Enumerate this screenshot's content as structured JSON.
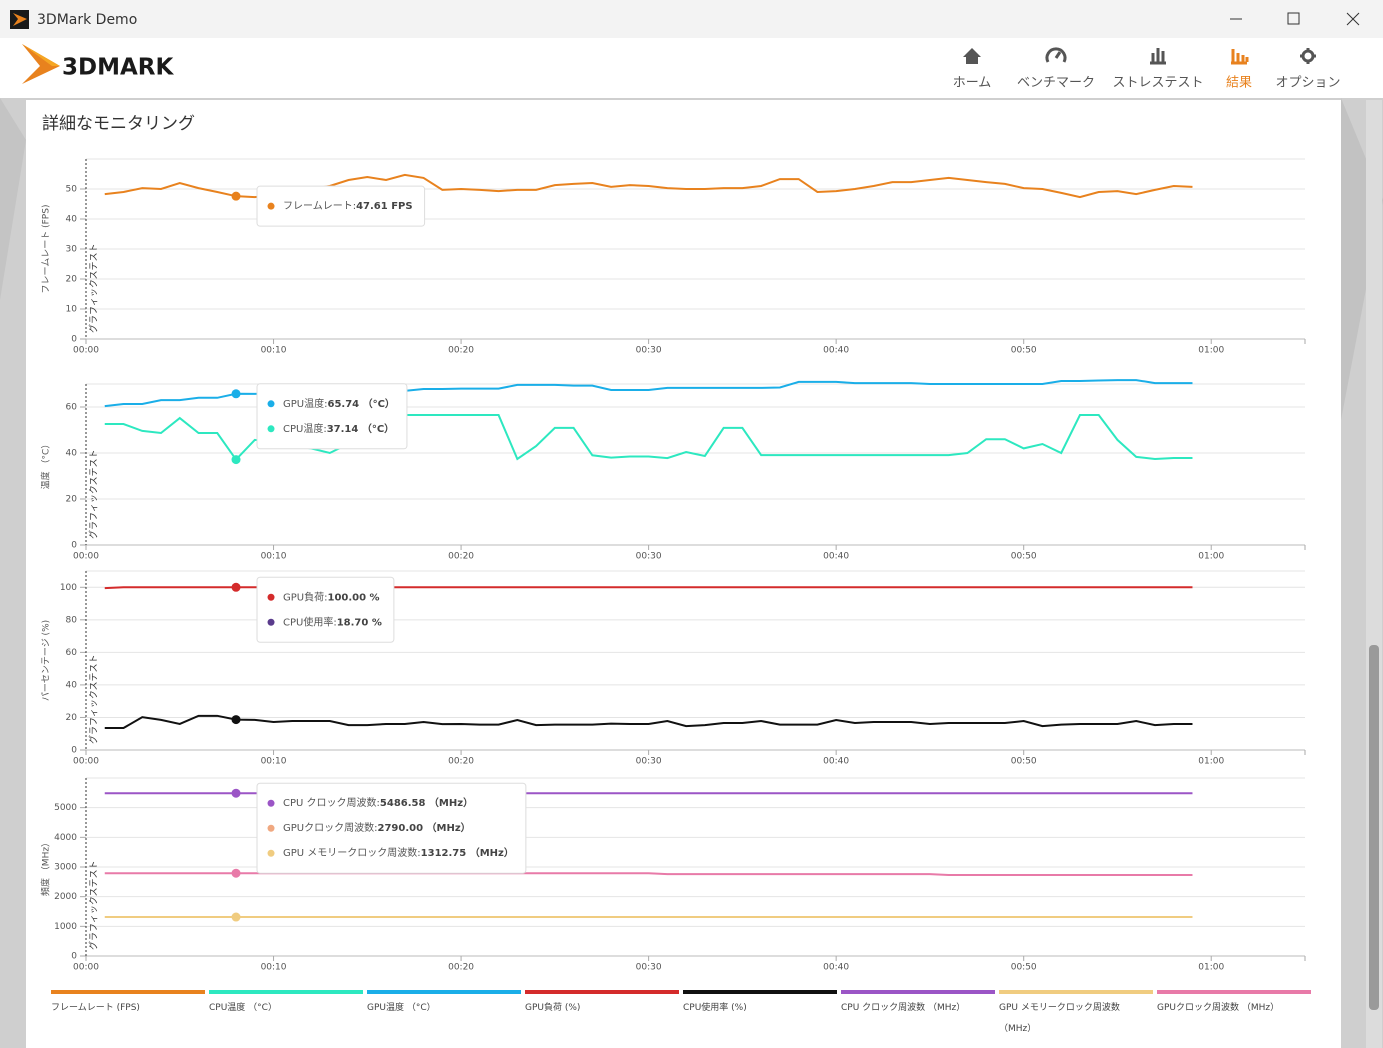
{
  "window": {
    "title": "3DMark Demo"
  },
  "header": {
    "logo": "3DMARK",
    "nav": [
      {
        "label": "ホーム",
        "active": false
      },
      {
        "label": "ベンチマーク",
        "active": false
      },
      {
        "label": "ストレステスト",
        "active": false
      },
      {
        "label": "結果",
        "active": true
      },
      {
        "label": "オプション",
        "active": false
      }
    ]
  },
  "section_title": "詳細なモニタリング",
  "chart_data": [
    {
      "type": "line",
      "ylabel": "フレームレート (FPS)",
      "annotation": "グラフィックステスト",
      "x": [
        1,
        2,
        3,
        4,
        5,
        6,
        7,
        8,
        9,
        10,
        11,
        12,
        13,
        14,
        15,
        16,
        17,
        18,
        19,
        20,
        21,
        22,
        23,
        24,
        25,
        26,
        27,
        28,
        29,
        30,
        31,
        32,
        33,
        34,
        35,
        36,
        37,
        38,
        39,
        40,
        41,
        42,
        43,
        44,
        45,
        46,
        47,
        48,
        49,
        50,
        51,
        52,
        53,
        54,
        55,
        56,
        57,
        58,
        59
      ],
      "xlim": [
        0,
        65
      ],
      "xticks": [
        {
          "value": 0,
          "label": "00:00"
        },
        {
          "value": 10,
          "label": "00:10"
        },
        {
          "value": 20,
          "label": "00:20"
        },
        {
          "value": 30,
          "label": "00:30"
        },
        {
          "value": 40,
          "label": "00:40"
        },
        {
          "value": 50,
          "label": "00:50"
        },
        {
          "value": 60,
          "label": "01:00"
        }
      ],
      "ylim": [
        0,
        60
      ],
      "yticks": [
        0,
        10,
        20,
        30,
        40,
        50
      ],
      "grid": true,
      "series": [
        {
          "name": "フレームレート (FPS)",
          "color": "#e8821e",
          "values": [
            48.3,
            49,
            50.3,
            50,
            52,
            50.3,
            49,
            47.61,
            47.3,
            48,
            49,
            50,
            51,
            53,
            54,
            53,
            54.7,
            53.7,
            49.7,
            50,
            49.7,
            49.3,
            49.7,
            49.7,
            51.3,
            51.7,
            52,
            50.7,
            51.3,
            51,
            50.3,
            50,
            50,
            50.3,
            50.3,
            51,
            53.3,
            53.3,
            49,
            49.3,
            50,
            51,
            52.3,
            52.3,
            53,
            53.7,
            53,
            52.3,
            51.7,
            50.3,
            50,
            48.7,
            47.3,
            49,
            49.3,
            48.3,
            49.7,
            51,
            50.7
          ]
        }
      ],
      "tooltip": {
        "x": 8,
        "items": [
          {
            "label": "フレームレート: ",
            "text": "47.61 FPS",
            "color": "#e8821e"
          }
        ]
      }
    },
    {
      "type": "line",
      "ylabel": "温度 （°C）",
      "annotation": "グラフィックステスト",
      "x": [
        1,
        2,
        3,
        4,
        5,
        6,
        7,
        8,
        9,
        10,
        11,
        12,
        13,
        14,
        15,
        16,
        17,
        18,
        19,
        20,
        21,
        22,
        23,
        24,
        25,
        26,
        27,
        28,
        29,
        30,
        31,
        32,
        33,
        34,
        35,
        36,
        37,
        38,
        39,
        40,
        41,
        42,
        43,
        44,
        45,
        46,
        47,
        48,
        49,
        50,
        51,
        52,
        53,
        54,
        55,
        56,
        57,
        58,
        59
      ],
      "xlim": [
        0,
        65
      ],
      "xticks": [
        {
          "value": 0,
          "label": "00:00"
        },
        {
          "value": 10,
          "label": "00:10"
        },
        {
          "value": 20,
          "label": "00:20"
        },
        {
          "value": 30,
          "label": "00:30"
        },
        {
          "value": 40,
          "label": "00:40"
        },
        {
          "value": 50,
          "label": "00:50"
        },
        {
          "value": 60,
          "label": "01:00"
        }
      ],
      "ylim": [
        0,
        70
      ],
      "yticks": [
        0,
        20,
        40,
        60
      ],
      "grid": true,
      "series": [
        {
          "name": "CPU温度 （°C）",
          "color": "#2de8c0",
          "values": [
            52.6,
            52.6,
            49.6,
            48.7,
            55.2,
            48.7,
            48.7,
            37.14,
            45.7,
            45,
            43,
            42,
            40,
            44,
            50,
            56.5,
            56.5,
            56.5,
            56.5,
            56.5,
            56.5,
            56.5,
            37.4,
            43,
            50.9,
            50.9,
            39,
            38,
            38.5,
            38.5,
            37.8,
            40.4,
            38.7,
            50.9,
            50.9,
            39.1,
            39.1,
            39.1,
            39.1,
            39.1,
            39.1,
            39.1,
            39.1,
            39.1,
            39.1,
            39.1,
            40,
            46,
            46,
            42,
            43.9,
            40,
            56.5,
            56.5,
            45.7,
            38.3,
            37.4,
            37.8,
            37.8
          ]
        },
        {
          "name": "GPU温度 （°C）",
          "color": "#1aaee8",
          "values": [
            60.4,
            61.3,
            61.3,
            63,
            63,
            64,
            64,
            65.74,
            65.7,
            66,
            66,
            66.5,
            67,
            67,
            67.5,
            67.5,
            67,
            67.8,
            67.8,
            68,
            68,
            68,
            69.6,
            69.6,
            69.6,
            69.3,
            69.3,
            67.4,
            67.4,
            67.4,
            68.3,
            68.3,
            68.3,
            68.3,
            68.3,
            68.3,
            68.5,
            70.9,
            70.9,
            70.9,
            70.4,
            70.4,
            70.4,
            70.4,
            70,
            70,
            70,
            70,
            70,
            70,
            70,
            71.3,
            71.3,
            71.5,
            71.7,
            71.7,
            70.4,
            70.4,
            70.4
          ]
        }
      ],
      "tooltip": {
        "x": 8,
        "items": [
          {
            "label": "GPU温度: ",
            "text": "65.74 （°C）",
            "color": "#1aaee8"
          },
          {
            "label": "CPU温度: ",
            "text": "37.14 （°C）",
            "color": "#2de8c0"
          }
        ]
      }
    },
    {
      "type": "line",
      "ylabel": "パーセンテージ (%)",
      "annotation": "グラフィックステスト",
      "x": [
        1,
        2,
        3,
        4,
        5,
        6,
        7,
        8,
        9,
        10,
        11,
        12,
        13,
        14,
        15,
        16,
        17,
        18,
        19,
        20,
        21,
        22,
        23,
        24,
        25,
        26,
        27,
        28,
        29,
        30,
        31,
        32,
        33,
        34,
        35,
        36,
        37,
        38,
        39,
        40,
        41,
        42,
        43,
        44,
        45,
        46,
        47,
        48,
        49,
        50,
        51,
        52,
        53,
        54,
        55,
        56,
        57,
        58,
        59
      ],
      "xlim": [
        0,
        65
      ],
      "xticks": [
        {
          "value": 0,
          "label": "00:00"
        },
        {
          "value": 10,
          "label": "00:10"
        },
        {
          "value": 20,
          "label": "00:20"
        },
        {
          "value": 30,
          "label": "00:30"
        },
        {
          "value": 40,
          "label": "00:40"
        },
        {
          "value": 50,
          "label": "00:50"
        },
        {
          "value": 60,
          "label": "01:00"
        }
      ],
      "ylim": [
        0,
        110
      ],
      "yticks": [
        0,
        20,
        40,
        60,
        80,
        100
      ],
      "grid": true,
      "series": [
        {
          "name": "GPU負荷 (%)",
          "color": "#d42b2b",
          "values": [
            99.5,
            100,
            100,
            100,
            100,
            100,
            100,
            100,
            100,
            100,
            100,
            100,
            100,
            100,
            100,
            100,
            100,
            100,
            100,
            100,
            100,
            100,
            100,
            100,
            100,
            100,
            100,
            100,
            100,
            100,
            100,
            100,
            100,
            100,
            100,
            100,
            100,
            100,
            100,
            100,
            100,
            100,
            100,
            100,
            100,
            100,
            100,
            100,
            100,
            100,
            100,
            100,
            100,
            100,
            100,
            100,
            100,
            100,
            100
          ]
        },
        {
          "name": "CPU使用率 (%)",
          "color": "#111111",
          "values": [
            13.5,
            13.5,
            20.2,
            18.5,
            16,
            21,
            21,
            18.7,
            18.5,
            17.2,
            17.8,
            17.8,
            17.8,
            15.3,
            15.3,
            16,
            16,
            17.2,
            15.9,
            16,
            15.6,
            15.6,
            18.4,
            15.3,
            15.6,
            15.6,
            15.6,
            16.2,
            16,
            16,
            17.8,
            14.7,
            15.3,
            16.6,
            16.6,
            17.8,
            15.6,
            15.6,
            15.6,
            18.4,
            16.6,
            17.2,
            17.2,
            17.2,
            16,
            16.6,
            16.6,
            16.6,
            16.6,
            17.8,
            14.7,
            15.6,
            16,
            16,
            16,
            17.8,
            15.3,
            16,
            16
          ]
        }
      ],
      "tooltip": {
        "x": 8,
        "items": [
          {
            "label": "GPU負荷: ",
            "text": "100.00 %",
            "color": "#d42b2b"
          },
          {
            "label": "CPU使用率: ",
            "text": "18.70 %",
            "color": "#5a3b8c"
          }
        ]
      }
    },
    {
      "type": "line",
      "ylabel": "頻度 （MHz）",
      "annotation": "グラフィックステスト",
      "x": [
        1,
        2,
        3,
        4,
        5,
        6,
        7,
        8,
        9,
        10,
        11,
        12,
        13,
        14,
        15,
        16,
        17,
        18,
        19,
        20,
        21,
        22,
        23,
        24,
        25,
        26,
        27,
        28,
        29,
        30,
        31,
        32,
        33,
        34,
        35,
        36,
        37,
        38,
        39,
        40,
        41,
        42,
        43,
        44,
        45,
        46,
        47,
        48,
        49,
        50,
        51,
        52,
        53,
        54,
        55,
        56,
        57,
        58,
        59
      ],
      "xlim": [
        0,
        65
      ],
      "xticks": [
        {
          "value": 0,
          "label": "00:00"
        },
        {
          "value": 10,
          "label": "00:10"
        },
        {
          "value": 20,
          "label": "00:20"
        },
        {
          "value": 30,
          "label": "00:30"
        },
        {
          "value": 40,
          "label": "00:40"
        },
        {
          "value": 50,
          "label": "00:50"
        },
        {
          "value": 60,
          "label": "01:00"
        }
      ],
      "ylim": [
        0,
        6000
      ],
      "yticks": [
        0,
        1000,
        2000,
        3000,
        4000,
        5000
      ],
      "grid": true,
      "series": [
        {
          "name": "CPU クロック周波数 （MHz）",
          "color": "#9b55c6",
          "values": [
            5486.58,
            5486.58,
            5486.58,
            5486.58,
            5486.58,
            5486.58,
            5486.58,
            5486.58,
            5486.58,
            5486.58,
            5486.58,
            5486.58,
            5486.58,
            5486.58,
            5486.58,
            5486.58,
            5486.58,
            5486.58,
            5486.58,
            5486.58,
            5486.58,
            5486.58,
            5486.58,
            5486.58,
            5486.58,
            5486.58,
            5486.58,
            5486.58,
            5486.58,
            5486.58,
            5486.58,
            5486.58,
            5486.58,
            5486.58,
            5486.58,
            5486.58,
            5486.58,
            5486.58,
            5486.58,
            5486.58,
            5486.58,
            5486.58,
            5486.58,
            5486.58,
            5486.58,
            5486.58,
            5486.58,
            5486.58,
            5486.58,
            5486.58,
            5486.58,
            5486.58,
            5486.58,
            5486.58,
            5486.58,
            5486.58,
            5486.58,
            5486.58,
            5486.58
          ]
        },
        {
          "name": "GPU メモリークロック周波数 （MHz）",
          "color": "#f0cc80",
          "values": [
            1312.75,
            1312.75,
            1312.75,
            1312.75,
            1312.75,
            1312.75,
            1312.75,
            1312.75,
            1312.75,
            1312.75,
            1312.75,
            1312.75,
            1312.75,
            1312.75,
            1312.75,
            1312.75,
            1312.75,
            1312.75,
            1312.75,
            1312.75,
            1312.75,
            1312.75,
            1312.75,
            1312.75,
            1312.75,
            1312.75,
            1312.75,
            1312.75,
            1312.75,
            1312.75,
            1312.75,
            1312.75,
            1312.75,
            1312.75,
            1312.75,
            1312.75,
            1312.75,
            1312.75,
            1312.75,
            1312.75,
            1312.75,
            1312.75,
            1312.75,
            1312.75,
            1312.75,
            1312.75,
            1312.75,
            1312.75,
            1312.75,
            1312.75,
            1312.75,
            1312.75,
            1312.75,
            1312.75,
            1312.75,
            1312.75,
            1312.75,
            1312.75,
            1312.75
          ]
        },
        {
          "name": "GPUクロック周波数 （MHz）",
          "color": "#e87aa8",
          "values": [
            2790,
            2790,
            2790,
            2790,
            2790,
            2790,
            2790,
            2790,
            2790,
            2790,
            2790,
            2790,
            2790,
            2790,
            2790,
            2790,
            2790,
            2790,
            2790,
            2790,
            2790,
            2790,
            2790,
            2790,
            2790,
            2790,
            2790,
            2790,
            2790,
            2790,
            2760,
            2760,
            2760,
            2760,
            2760,
            2760,
            2760,
            2760,
            2760,
            2760,
            2760,
            2760,
            2760,
            2760,
            2760,
            2730,
            2730,
            2730,
            2730,
            2730,
            2730,
            2730,
            2730,
            2730,
            2730,
            2730,
            2730,
            2730,
            2730
          ]
        }
      ],
      "tooltip": {
        "x": 8,
        "items": [
          {
            "label": "CPU クロック周波数: ",
            "text": "5486.58 （MHz）",
            "color": "#9b55c6"
          },
          {
            "label": "GPUクロック周波数: ",
            "text": "2790.00 （MHz）",
            "color": "#f0a880"
          },
          {
            "label": "GPU メモリークロック周波数: ",
            "text": "1312.75 （MHz）",
            "color": "#f0cc80"
          }
        ]
      }
    }
  ]
}
